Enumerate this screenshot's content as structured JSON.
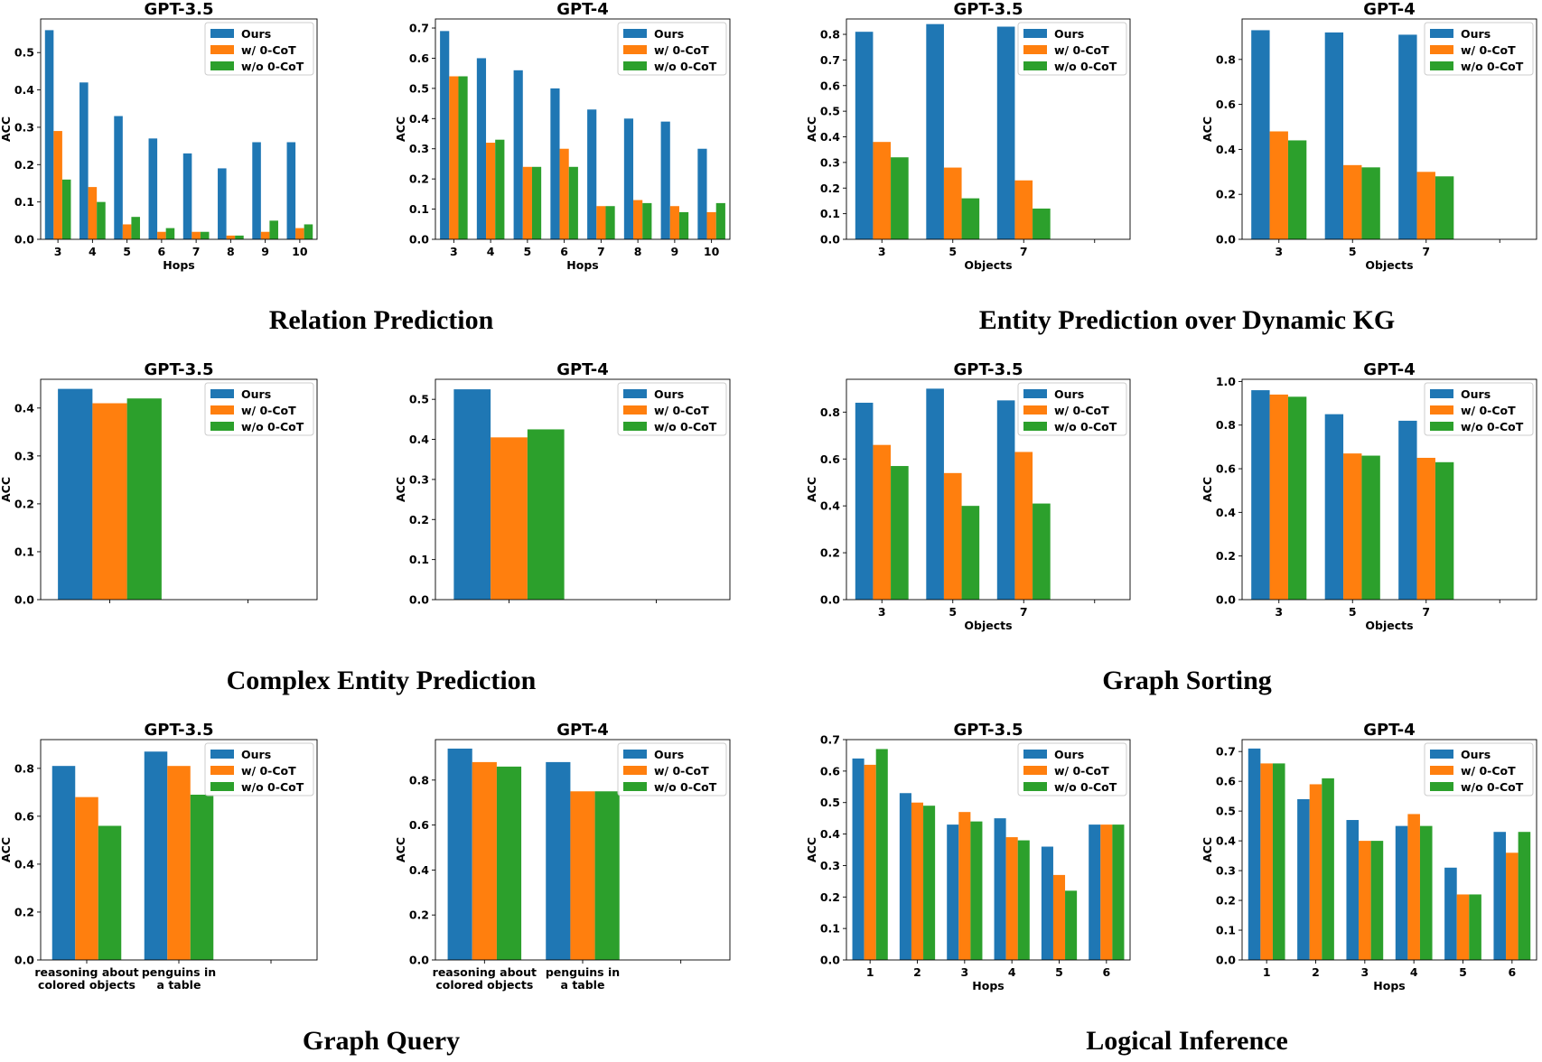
{
  "legend": [
    "Ours",
    "w/ 0-CoT",
    "w/o 0-CoT"
  ],
  "colors": [
    "#1f77b4",
    "#ff7f0e",
    "#2ca02c"
  ],
  "sections": [
    {
      "title": "Relation Prediction"
    },
    {
      "title": "Entity Prediction over Dynamic KG"
    },
    {
      "title": "Complex Entity Prediction"
    },
    {
      "title": "Graph Sorting"
    },
    {
      "title": "Graph Query"
    },
    {
      "title": "Logical Inference"
    }
  ],
  "chart_data": [
    {
      "type": "bar",
      "section": "Relation Prediction",
      "title": "GPT-3.5",
      "xlabel": "Hops",
      "ylabel": "ACC",
      "categories": [
        "3",
        "4",
        "5",
        "6",
        "7",
        "8",
        "9",
        "10"
      ],
      "ylim": [
        0,
        0.59
      ],
      "yticks": [
        "0.0",
        "0.1",
        "0.2",
        "0.3",
        "0.4",
        "0.5"
      ],
      "legend_loc": "top-right",
      "series": [
        {
          "name": "Ours",
          "values": [
            0.56,
            0.42,
            0.33,
            0.27,
            0.23,
            0.19,
            0.26,
            0.26
          ]
        },
        {
          "name": "w/ 0-CoT",
          "values": [
            0.29,
            0.14,
            0.04,
            0.02,
            0.02,
            0.01,
            0.02,
            0.03
          ]
        },
        {
          "name": "w/o 0-CoT",
          "values": [
            0.16,
            0.1,
            0.06,
            0.03,
            0.02,
            0.01,
            0.05,
            0.04
          ]
        }
      ]
    },
    {
      "type": "bar",
      "section": "Relation Prediction",
      "title": "GPT-4",
      "xlabel": "Hops",
      "ylabel": "ACC",
      "categories": [
        "3",
        "4",
        "5",
        "6",
        "7",
        "8",
        "9",
        "10"
      ],
      "ylim": [
        0,
        0.73
      ],
      "yticks": [
        "0.0",
        "0.1",
        "0.2",
        "0.3",
        "0.4",
        "0.5",
        "0.6",
        "0.7"
      ],
      "legend_loc": "top-right",
      "series": [
        {
          "name": "Ours",
          "values": [
            0.69,
            0.6,
            0.56,
            0.5,
            0.43,
            0.4,
            0.39,
            0.3
          ]
        },
        {
          "name": "w/ 0-CoT",
          "values": [
            0.54,
            0.32,
            0.24,
            0.3,
            0.11,
            0.13,
            0.11,
            0.09
          ]
        },
        {
          "name": "w/o 0-CoT",
          "values": [
            0.54,
            0.33,
            0.24,
            0.24,
            0.11,
            0.12,
            0.09,
            0.12
          ]
        }
      ]
    },
    {
      "type": "bar",
      "section": "Entity Prediction over Dynamic KG",
      "title": "GPT-3.5",
      "xlabel": "Objects",
      "ylabel": "ACC",
      "categories": [
        "3",
        "5",
        "7",
        ""
      ],
      "ylim": [
        0,
        0.86
      ],
      "yticks": [
        "0.0",
        "0.1",
        "0.2",
        "0.3",
        "0.4",
        "0.5",
        "0.6",
        "0.7",
        "0.8"
      ],
      "legend_loc": "top-right",
      "series": [
        {
          "name": "Ours",
          "values": [
            0.81,
            0.84,
            0.83,
            null
          ]
        },
        {
          "name": "w/ 0-CoT",
          "values": [
            0.38,
            0.28,
            0.23,
            null
          ]
        },
        {
          "name": "w/o 0-CoT",
          "values": [
            0.32,
            0.16,
            0.12,
            null
          ]
        }
      ]
    },
    {
      "type": "bar",
      "section": "Entity Prediction over Dynamic KG",
      "title": "GPT-4",
      "xlabel": "Objects",
      "ylabel": "ACC",
      "categories": [
        "3",
        "5",
        "7",
        ""
      ],
      "ylim": [
        0,
        0.98
      ],
      "yticks": [
        "0.0",
        "0.2",
        "0.4",
        "0.6",
        "0.8"
      ],
      "legend_loc": "top-right",
      "series": [
        {
          "name": "Ours",
          "values": [
            0.93,
            0.92,
            0.91,
            null
          ]
        },
        {
          "name": "w/ 0-CoT",
          "values": [
            0.48,
            0.33,
            0.3,
            null
          ]
        },
        {
          "name": "w/o 0-CoT",
          "values": [
            0.44,
            0.32,
            0.28,
            null
          ]
        }
      ]
    },
    {
      "type": "bar",
      "section": "Complex Entity Prediction",
      "title": "GPT-3.5",
      "xlabel": "",
      "ylabel": "ACC",
      "categories": [
        "",
        ""
      ],
      "ylim": [
        0,
        0.46
      ],
      "yticks": [
        "0.0",
        "0.1",
        "0.2",
        "0.3",
        "0.4"
      ],
      "legend_loc": "top-right",
      "series": [
        {
          "name": "Ours",
          "values": [
            0.44,
            null
          ]
        },
        {
          "name": "w/ 0-CoT",
          "values": [
            0.41,
            null
          ]
        },
        {
          "name": "w/o 0-CoT",
          "values": [
            0.42,
            null
          ]
        }
      ]
    },
    {
      "type": "bar",
      "section": "Complex Entity Prediction",
      "title": "GPT-4",
      "xlabel": "",
      "ylabel": "ACC",
      "categories": [
        "",
        ""
      ],
      "ylim": [
        0,
        0.55
      ],
      "yticks": [
        "0.0",
        "0.1",
        "0.2",
        "0.3",
        "0.4",
        "0.5"
      ],
      "legend_loc": "top-right",
      "series": [
        {
          "name": "Ours",
          "values": [
            0.525,
            null
          ]
        },
        {
          "name": "w/ 0-CoT",
          "values": [
            0.405,
            null
          ]
        },
        {
          "name": "w/o 0-CoT",
          "values": [
            0.425,
            null
          ]
        }
      ]
    },
    {
      "type": "bar",
      "section": "Graph Sorting",
      "title": "GPT-3.5",
      "xlabel": "Objects",
      "ylabel": "ACC",
      "categories": [
        "3",
        "5",
        "7",
        ""
      ],
      "ylim": [
        0,
        0.94
      ],
      "yticks": [
        "0.0",
        "0.2",
        "0.4",
        "0.6",
        "0.8"
      ],
      "legend_loc": "top-right",
      "series": [
        {
          "name": "Ours",
          "values": [
            0.84,
            0.9,
            0.85,
            null
          ]
        },
        {
          "name": "w/ 0-CoT",
          "values": [
            0.66,
            0.54,
            0.63,
            null
          ]
        },
        {
          "name": "w/o 0-CoT",
          "values": [
            0.57,
            0.4,
            0.41,
            null
          ]
        }
      ]
    },
    {
      "type": "bar",
      "section": "Graph Sorting",
      "title": "GPT-4",
      "xlabel": "Objects",
      "ylabel": "ACC",
      "categories": [
        "3",
        "5",
        "7",
        ""
      ],
      "ylim": [
        0,
        1.01
      ],
      "yticks": [
        "0.0",
        "0.2",
        "0.4",
        "0.6",
        "0.8",
        "1.0"
      ],
      "legend_loc": "top-right",
      "series": [
        {
          "name": "Ours",
          "values": [
            0.96,
            0.85,
            0.82,
            null
          ]
        },
        {
          "name": "w/ 0-CoT",
          "values": [
            0.94,
            0.67,
            0.65,
            null
          ]
        },
        {
          "name": "w/o 0-CoT",
          "values": [
            0.93,
            0.66,
            0.63,
            null
          ]
        }
      ]
    },
    {
      "type": "bar",
      "section": "Graph Query",
      "title": "GPT-3.5",
      "xlabel": "",
      "ylabel": "ACC",
      "categories": [
        "reasoning about\ncolored objects",
        "penguins in\na table",
        ""
      ],
      "ylim": [
        0,
        0.92
      ],
      "yticks": [
        "0.0",
        "0.2",
        "0.4",
        "0.6",
        "0.8"
      ],
      "legend_loc": "top-right",
      "series": [
        {
          "name": "Ours",
          "values": [
            0.81,
            0.87,
            null
          ]
        },
        {
          "name": "w/ 0-CoT",
          "values": [
            0.68,
            0.81,
            null
          ]
        },
        {
          "name": "w/o 0-CoT",
          "values": [
            0.56,
            0.69,
            null
          ]
        }
      ]
    },
    {
      "type": "bar",
      "section": "Graph Query",
      "title": "GPT-4",
      "xlabel": "",
      "ylabel": "ACC",
      "categories": [
        "reasoning about\ncolored objects",
        "penguins in\na table",
        ""
      ],
      "ylim": [
        0,
        0.98
      ],
      "yticks": [
        "0.0",
        "0.2",
        "0.4",
        "0.6",
        "0.8"
      ],
      "legend_loc": "top-right",
      "series": [
        {
          "name": "Ours",
          "values": [
            0.94,
            0.88,
            null
          ]
        },
        {
          "name": "w/ 0-CoT",
          "values": [
            0.88,
            0.75,
            null
          ]
        },
        {
          "name": "w/o 0-CoT",
          "values": [
            0.86,
            0.75,
            null
          ]
        }
      ]
    },
    {
      "type": "bar",
      "section": "Logical Inference",
      "title": "GPT-3.5",
      "xlabel": "Hops",
      "ylabel": "ACC",
      "categories": [
        "1",
        "2",
        "3",
        "4",
        "5",
        "6"
      ],
      "ylim": [
        0,
        0.7
      ],
      "yticks": [
        "0.0",
        "0.1",
        "0.2",
        "0.3",
        "0.4",
        "0.5",
        "0.6",
        "0.7"
      ],
      "legend_loc": "top-right",
      "series": [
        {
          "name": "Ours",
          "values": [
            0.64,
            0.53,
            0.43,
            0.45,
            0.36,
            0.43
          ]
        },
        {
          "name": "w/ 0-CoT",
          "values": [
            0.62,
            0.5,
            0.47,
            0.39,
            0.27,
            0.43
          ]
        },
        {
          "name": "w/o 0-CoT",
          "values": [
            0.67,
            0.49,
            0.44,
            0.38,
            0.22,
            0.43
          ]
        }
      ]
    },
    {
      "type": "bar",
      "section": "Logical Inference",
      "title": "GPT-4",
      "xlabel": "Hops",
      "ylabel": "ACC",
      "categories": [
        "1",
        "2",
        "3",
        "4",
        "5",
        "6"
      ],
      "ylim": [
        0,
        0.74
      ],
      "yticks": [
        "0.0",
        "0.1",
        "0.2",
        "0.3",
        "0.4",
        "0.5",
        "0.6",
        "0.7"
      ],
      "legend_loc": "top-right",
      "series": [
        {
          "name": "Ours",
          "values": [
            0.71,
            0.54,
            0.47,
            0.45,
            0.31,
            0.43
          ]
        },
        {
          "name": "w/ 0-CoT",
          "values": [
            0.66,
            0.59,
            0.4,
            0.49,
            0.22,
            0.36
          ]
        },
        {
          "name": "w/o 0-CoT",
          "values": [
            0.66,
            0.61,
            0.4,
            0.45,
            0.22,
            0.43
          ]
        }
      ]
    }
  ]
}
